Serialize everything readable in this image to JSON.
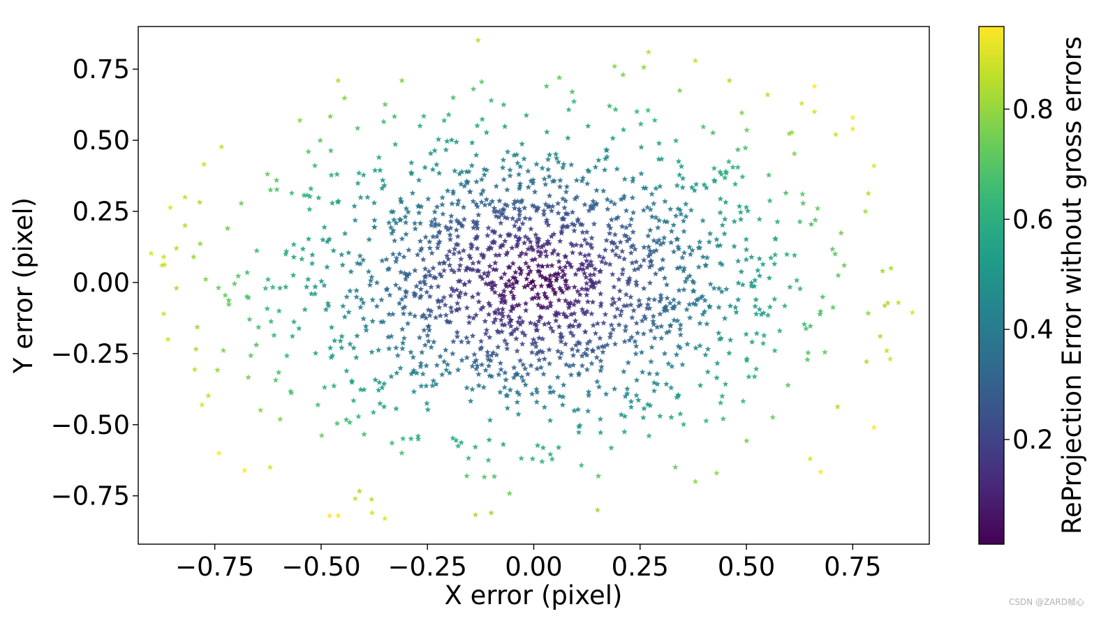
{
  "chart_data": {
    "type": "scatter",
    "marker": "star",
    "colormap": "viridis",
    "xlabel": "X error (pixel)",
    "ylabel": "Y error (pixel)",
    "xlim": [
      -0.93,
      0.93
    ],
    "ylim": [
      -0.92,
      0.9
    ],
    "xticks": [
      -0.75,
      -0.5,
      -0.25,
      0.0,
      0.25,
      0.5,
      0.75
    ],
    "xtick_labels": [
      "−0.75",
      "−0.50",
      "−0.25",
      "0.00",
      "0.25",
      "0.50",
      "0.75"
    ],
    "yticks": [
      0.75,
      0.5,
      0.25,
      0.0,
      -0.25,
      -0.5,
      -0.75
    ],
    "ytick_labels": [
      "0.75",
      "0.50",
      "0.25",
      "0.00",
      "−0.25",
      "−0.50",
      "−0.75"
    ],
    "colorbar": {
      "label": "ReProjection Error without gross errors",
      "range": [
        0.01,
        0.95
      ],
      "ticks": [
        0.2,
        0.4,
        0.6,
        0.8
      ],
      "tick_labels": [
        "0.2",
        "0.4",
        "0.6",
        "0.8"
      ]
    },
    "color_value": "sqrt(x^2 + y^2)",
    "points_sample": [
      [
        -0.87,
        0.09
      ],
      [
        -0.87,
        -0.11
      ],
      [
        -0.86,
        -0.2
      ],
      [
        -0.84,
        0.12
      ],
      [
        -0.84,
        -0.02
      ],
      [
        -0.82,
        0.3
      ],
      [
        -0.82,
        0.2
      ],
      [
        -0.8,
        0.09
      ],
      [
        -0.78,
        -0.43
      ],
      [
        -0.74,
        -0.6
      ],
      [
        -0.72,
        0.19
      ],
      [
        -0.62,
        -0.65
      ],
      [
        -0.55,
        0.57
      ],
      [
        -0.53,
        0.46
      ],
      [
        -0.48,
        -0.82
      ],
      [
        -0.46,
        0.71
      ],
      [
        -0.46,
        -0.82
      ],
      [
        -0.42,
        -0.76
      ],
      [
        -0.38,
        -0.81
      ],
      [
        -0.35,
        -0.83
      ],
      [
        -0.31,
        0.71
      ],
      [
        -0.2,
        0.59
      ],
      [
        -0.1,
        0.64
      ],
      [
        -0.1,
        -0.81
      ],
      [
        0.03,
        0.69
      ],
      [
        0.06,
        0.72
      ],
      [
        0.15,
        -0.8
      ],
      [
        0.19,
        0.76
      ],
      [
        0.21,
        0.73
      ],
      [
        0.27,
        0.81
      ],
      [
        0.38,
        0.78
      ],
      [
        0.46,
        0.71
      ],
      [
        0.55,
        0.66
      ],
      [
        0.63,
        0.63
      ],
      [
        0.66,
        0.69
      ],
      [
        0.66,
        0.6
      ],
      [
        0.71,
        0.52
      ],
      [
        0.75,
        0.58
      ],
      [
        0.75,
        0.54
      ],
      [
        0.8,
        0.41
      ],
      [
        0.8,
        -0.51
      ],
      [
        0.82,
        0.04
      ],
      [
        0.84,
        0.05
      ],
      [
        0.83,
        -0.24
      ],
      [
        0.78,
        0.25
      ],
      [
        0.73,
        0.06
      ],
      [
        0.65,
        -0.62
      ],
      [
        0.38,
        -0.7
      ],
      [
        0.43,
        -0.67
      ],
      [
        -0.07,
        -0.03
      ],
      [
        0.01,
        0.04
      ],
      [
        -0.04,
        0.0
      ],
      [
        0.05,
        -0.04
      ],
      [
        -0.1,
        0.12
      ],
      [
        0.12,
        0.15
      ]
    ]
  },
  "watermark": "CSDN @ZARD帧心"
}
